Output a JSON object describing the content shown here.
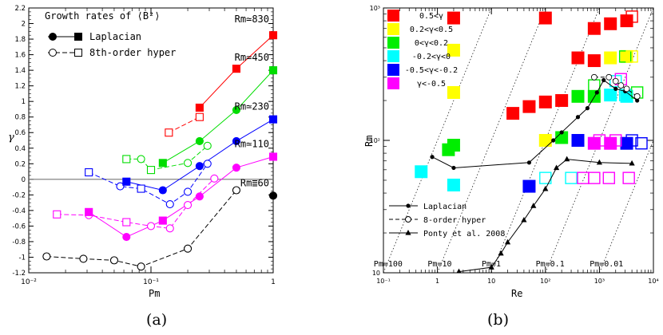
{
  "captions": {
    "a": "(a)",
    "b": "(b)"
  },
  "chart_data": [
    {
      "type": "line",
      "panel": "(a)",
      "title": "Growth rates of ⟨B²⟩",
      "xlabel": "Pm",
      "ylabel": "γ",
      "xscale": "log",
      "xlim": [
        0.01,
        1
      ],
      "ylim": [
        -1.2,
        2.2
      ],
      "xticks": [
        0.01,
        0.1,
        1
      ],
      "xtick_labels": [
        "10⁻²",
        "10⁻¹",
        "1"
      ],
      "yticks": [
        -1.2,
        -1,
        -0.8,
        -0.6,
        -0.4,
        -0.2,
        0,
        0.2,
        0.4,
        0.6,
        0.8,
        1,
        1.2,
        1.4,
        1.6,
        1.8,
        2,
        2.2
      ],
      "ytick_labels": [
        "-1.2",
        "-1",
        "-0.8",
        "-0.6",
        "-0.4",
        "-0.2",
        "0",
        "0.2",
        "0.4",
        "0.6",
        "0.8",
        "1",
        "1.2",
        "1.4",
        "1.6",
        "1.8",
        "2",
        "2.2"
      ],
      "legend": [
        {
          "label": "Laplacian",
          "style": "solid-filled"
        },
        {
          "label": "8th-order hyper",
          "style": "dashed-open"
        }
      ],
      "series": [
        {
          "name": "Rm≃830",
          "color": "#ff0000",
          "laplacian": [
            [
              0.25,
              0.92
            ],
            [
              0.5,
              1.42
            ],
            [
              1.0,
              1.85
            ]
          ],
          "hyper": [
            [
              0.14,
              0.6
            ],
            [
              0.25,
              0.8
            ]
          ]
        },
        {
          "name": "Rm≃450",
          "color": "#00dd00",
          "laplacian": [
            [
              0.125,
              0.21
            ],
            [
              0.25,
              0.49
            ],
            [
              0.5,
              0.89
            ],
            [
              1.0,
              1.4
            ]
          ],
          "hyper": [
            [
              0.063,
              0.26
            ],
            [
              0.083,
              0.26
            ],
            [
              0.1,
              0.12
            ],
            [
              0.2,
              0.21
            ],
            [
              0.29,
              0.43
            ]
          ]
        },
        {
          "name": "Rm≃230",
          "color": "#0000ff",
          "laplacian": [
            [
              0.063,
              -0.03
            ],
            [
              0.125,
              -0.14
            ],
            [
              0.25,
              0.17
            ],
            [
              0.5,
              0.49
            ],
            [
              1.0,
              0.77
            ]
          ],
          "hyper": [
            [
              0.031,
              0.09
            ],
            [
              0.056,
              -0.09
            ],
            [
              0.083,
              -0.12
            ],
            [
              0.143,
              -0.32
            ],
            [
              0.2,
              -0.16
            ],
            [
              0.29,
              0.2
            ]
          ]
        },
        {
          "name": "Rm≃110",
          "color": "#ff00ff",
          "laplacian": [
            [
              0.031,
              -0.42
            ],
            [
              0.063,
              -0.74
            ],
            [
              0.125,
              -0.53
            ],
            [
              0.25,
              -0.22
            ],
            [
              0.5,
              0.15
            ],
            [
              1.0,
              0.29
            ]
          ],
          "hyper": [
            [
              0.017,
              -0.45
            ],
            [
              0.031,
              -0.46
            ],
            [
              0.063,
              -0.55
            ],
            [
              0.1,
              -0.6
            ],
            [
              0.143,
              -0.63
            ],
            [
              0.2,
              -0.33
            ],
            [
              0.33,
              0.01
            ]
          ]
        },
        {
          "name": "Rm≣60",
          "color": "#000000",
          "laplacian": [
            [
              1.0,
              -0.21
            ]
          ],
          "hyper": [
            [
              0.014,
              -0.99
            ],
            [
              0.028,
              -1.02
            ],
            [
              0.05,
              -1.04
            ],
            [
              0.083,
              -1.12
            ],
            [
              0.2,
              -0.89
            ],
            [
              0.5,
              -0.14
            ]
          ]
        }
      ]
    },
    {
      "type": "scatter",
      "panel": "(b)",
      "xlabel": "Re",
      "ylabel": "Rm",
      "xscale": "log",
      "yscale": "log",
      "xlim": [
        0.1,
        10000
      ],
      "ylim": [
        10,
        1000
      ],
      "xtick_labels": [
        "10⁻¹",
        "1",
        "10",
        "10²",
        "10³",
        "10⁴"
      ],
      "ytick_labels": [
        "10",
        "10²",
        "10³"
      ],
      "color_legend": [
        {
          "label": "0.5<γ",
          "color": "#ff0000"
        },
        {
          "label": "0.2<γ<0.5",
          "color": "#ffff00"
        },
        {
          "label": "0<γ<0.2",
          "color": "#00ee00"
        },
        {
          "label": "-0.2<γ<0",
          "color": "#00ffff"
        },
        {
          "label": "-0.5<γ<-0.2",
          "color": "#0000ff"
        },
        {
          "label": "γ<-0.5",
          "color": "#ff00ff"
        }
      ],
      "line_legend": [
        {
          "label": "Laplacian",
          "style": "solid-dot"
        },
        {
          "label": "8-order hyper",
          "style": "dashed-open-circle"
        },
        {
          "label": "Ponty et al. 2008",
          "style": "solid-triangle"
        }
      ],
      "pm_lines": [
        {
          "label": "Pm=100",
          "pm": 100
        },
        {
          "label": "Pm=10",
          "pm": 10
        },
        {
          "label": "Pm=1",
          "pm": 1
        },
        {
          "label": "Pm=0.1",
          "pm": 0.1
        },
        {
          "label": "Pm=0.01",
          "pm": 0.01
        }
      ],
      "filled_points": [
        {
          "re": 2,
          "rm": 840,
          "c": 0
        },
        {
          "re": 100,
          "rm": 840,
          "c": 0
        },
        {
          "re": 2,
          "rm": 480,
          "c": 1
        },
        {
          "re": 2,
          "rm": 230,
          "c": 1
        },
        {
          "re": 0.5,
          "rm": 58,
          "c": 3
        },
        {
          "re": 2,
          "rm": 46,
          "c": 3
        },
        {
          "re": 1.6,
          "rm": 85,
          "c": 2
        },
        {
          "re": 2,
          "rm": 92,
          "c": 2
        },
        {
          "re": 25,
          "rm": 160,
          "c": 0
        },
        {
          "re": 50,
          "rm": 180,
          "c": 0
        },
        {
          "re": 100,
          "rm": 195,
          "c": 0
        },
        {
          "re": 200,
          "rm": 200,
          "c": 0
        },
        {
          "re": 400,
          "rm": 420,
          "c": 0
        },
        {
          "re": 800,
          "rm": 400,
          "c": 0
        },
        {
          "re": 800,
          "rm": 700,
          "c": 0
        },
        {
          "re": 1600,
          "rm": 760,
          "c": 0
        },
        {
          "re": 3200,
          "rm": 800,
          "c": 0
        },
        {
          "re": 1600,
          "rm": 420,
          "c": 1
        },
        {
          "re": 3200,
          "rm": 430,
          "c": 1
        },
        {
          "re": 100,
          "rm": 100,
          "c": 1
        },
        {
          "re": 400,
          "rm": 215,
          "c": 2
        },
        {
          "re": 800,
          "rm": 215,
          "c": 2
        },
        {
          "re": 1600,
          "rm": 220,
          "c": 3
        },
        {
          "re": 3200,
          "rm": 215,
          "c": 3
        },
        {
          "re": 200,
          "rm": 105,
          "c": 2
        },
        {
          "re": 400,
          "rm": 100,
          "c": 4
        },
        {
          "re": 800,
          "rm": 95,
          "c": 5
        },
        {
          "re": 1600,
          "rm": 95,
          "c": 5
        },
        {
          "re": 3200,
          "rm": 95,
          "c": 4
        },
        {
          "re": 50,
          "rm": 45,
          "c": 4
        }
      ],
      "open_points": [
        {
          "re": 4000,
          "rm": 860,
          "c": 0
        },
        {
          "re": 3000,
          "rm": 430,
          "c": 2
        },
        {
          "re": 4000,
          "rm": 430,
          "c": 1
        },
        {
          "re": 2000,
          "rm": 280,
          "c": 3
        },
        {
          "re": 800,
          "rm": 260,
          "c": 2
        },
        {
          "re": 2500,
          "rm": 290,
          "c": 5
        },
        {
          "re": 5000,
          "rm": 230,
          "c": 2
        },
        {
          "re": 3000,
          "rm": 220,
          "c": 3
        },
        {
          "re": 1000,
          "rm": 100,
          "c": 5
        },
        {
          "re": 2000,
          "rm": 100,
          "c": 5
        },
        {
          "re": 4000,
          "rm": 100,
          "c": 4
        },
        {
          "re": 6000,
          "rm": 95,
          "c": 4
        },
        {
          "re": 100,
          "rm": 52,
          "c": 3
        },
        {
          "re": 300,
          "rm": 52,
          "c": 3
        },
        {
          "re": 500,
          "rm": 52,
          "c": 5
        },
        {
          "re": 800,
          "rm": 52,
          "c": 5
        },
        {
          "re": 1500,
          "rm": 52,
          "c": 5
        },
        {
          "re": 3500,
          "rm": 52,
          "c": 5
        }
      ],
      "laplacian_line": [
        [
          0.8,
          75
        ],
        [
          2,
          62
        ],
        [
          50,
          68
        ],
        [
          140,
          100
        ],
        [
          200,
          115
        ],
        [
          400,
          150
        ],
        [
          600,
          175
        ],
        [
          900,
          230
        ],
        [
          1200,
          285
        ],
        [
          2000,
          245
        ],
        [
          3000,
          235
        ],
        [
          5000,
          200
        ]
      ],
      "hyper_line": [
        [
          800,
          300
        ],
        [
          1500,
          300
        ],
        [
          2000,
          280
        ],
        [
          2500,
          260
        ],
        [
          3200,
          245
        ],
        [
          5000,
          215
        ]
      ],
      "ponty_line": [
        [
          2.5,
          10.2
        ],
        [
          10,
          11
        ],
        [
          15,
          14
        ],
        [
          20,
          17
        ],
        [
          40,
          25
        ],
        [
          60,
          32
        ],
        [
          100,
          43
        ],
        [
          160,
          62
        ],
        [
          250,
          72
        ],
        [
          1000,
          68
        ],
        [
          4000,
          67
        ]
      ]
    }
  ]
}
